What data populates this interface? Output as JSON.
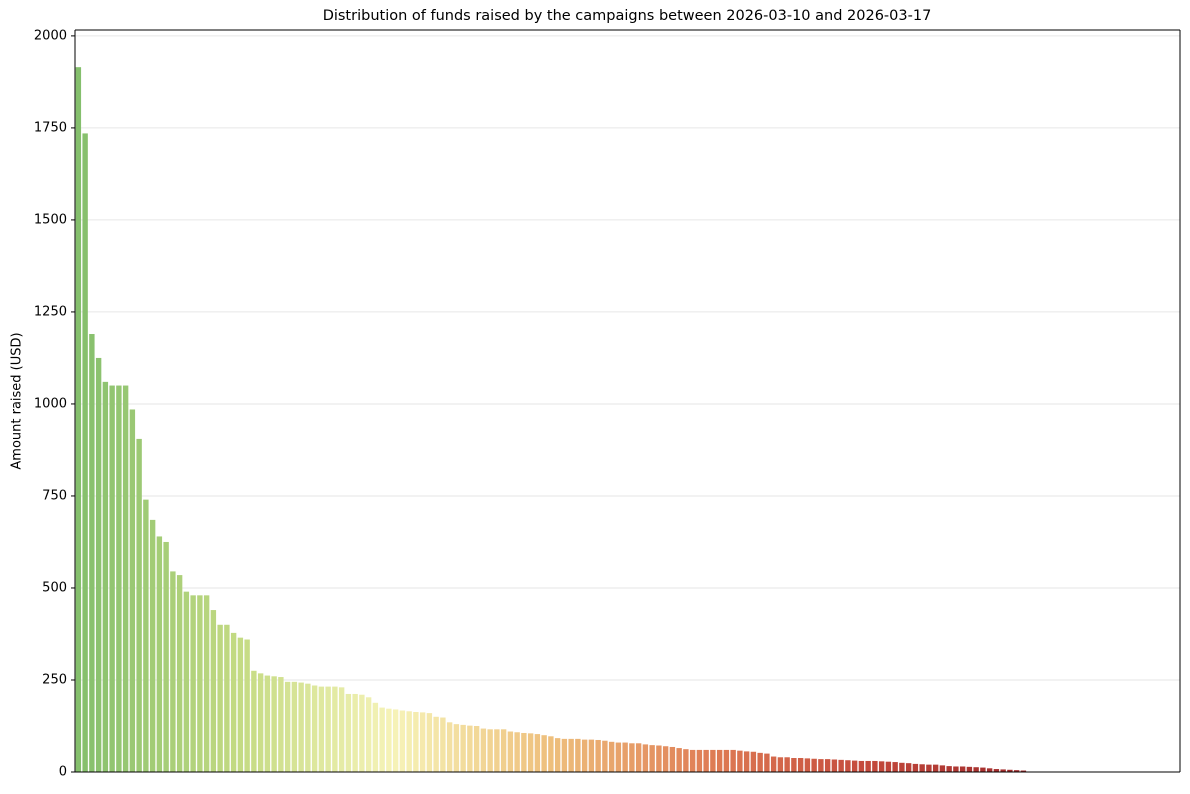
{
  "chart_data": {
    "type": "bar",
    "title": "Distribution of funds raised by the campaigns between 2026-03-10 and 2026-03-17",
    "y_label": "Amount raised (USD)",
    "categories": [
      null,
      null,
      null,
      null,
      null,
      null,
      null,
      null,
      null,
      null,
      null,
      null,
      null,
      null,
      null,
      null,
      null,
      null,
      null,
      null,
      null,
      null,
      null,
      null,
      null,
      null,
      null,
      null,
      null,
      null,
      null,
      null,
      null,
      null,
      null,
      null,
      null,
      null,
      null,
      null,
      null,
      null,
      null,
      null,
      null,
      null,
      null,
      null,
      null,
      null,
      null,
      null,
      null,
      null,
      null,
      null,
      null,
      null,
      null,
      null,
      null,
      null,
      null,
      null,
      null,
      null,
      null,
      null,
      null,
      null,
      null,
      null,
      null,
      null,
      null,
      null,
      null,
      null,
      null,
      null,
      null,
      null,
      null,
      null,
      null,
      null,
      null,
      null,
      null,
      null,
      null,
      null,
      null,
      null,
      null,
      null,
      null,
      null,
      null,
      null,
      null,
      null,
      null,
      null,
      null,
      null,
      null,
      null,
      null,
      null,
      null,
      null,
      null,
      null,
      null,
      null,
      null,
      null,
      null,
      null,
      null,
      null,
      null,
      null,
      null,
      null,
      null,
      null,
      null,
      null,
      null,
      null,
      null,
      null,
      null,
      null,
      null,
      null,
      null,
      null,
      null
    ],
    "values": [
      1915,
      1735,
      1190,
      1125,
      1060,
      1050,
      1050,
      1050,
      985,
      905,
      740,
      685,
      640,
      625,
      545,
      535,
      490,
      480,
      480,
      480,
      440,
      400,
      400,
      378,
      365,
      360,
      275,
      268,
      262,
      260,
      258,
      245,
      245,
      243,
      240,
      235,
      232,
      232,
      232,
      230,
      212,
      212,
      210,
      203,
      188,
      175,
      172,
      170,
      167,
      165,
      163,
      162,
      160,
      150,
      148,
      135,
      130,
      128,
      126,
      125,
      118,
      116,
      116,
      116,
      110,
      108,
      106,
      105,
      103,
      100,
      97,
      92,
      90,
      90,
      90,
      88,
      88,
      87,
      85,
      82,
      80,
      80,
      78,
      78,
      75,
      73,
      72,
      70,
      68,
      65,
      62,
      60,
      60,
      60,
      60,
      60,
      60,
      60,
      58,
      56,
      55,
      52,
      50,
      42,
      40,
      40,
      38,
      38,
      37,
      36,
      35,
      35,
      34,
      33,
      32,
      31,
      30,
      30,
      30,
      29,
      28,
      27,
      25,
      24,
      22,
      21,
      20,
      20,
      18,
      16,
      15,
      15,
      14,
      13,
      12,
      10,
      8,
      7,
      6,
      5,
      4
    ],
    "colormap": [
      "#84bf6c",
      "#c3da82",
      "#f6f3b8",
      "#eebf7c",
      "#df7d55",
      "#c44a3c",
      "#9e2a2b"
    ],
    "xlim": [
      -0.5,
      163.2
    ],
    "ylim": [
      0,
      2016
    ],
    "yticks": [
      0,
      250,
      500,
      750,
      1000,
      1250,
      1500,
      1750,
      2000
    ],
    "grid": true
  }
}
